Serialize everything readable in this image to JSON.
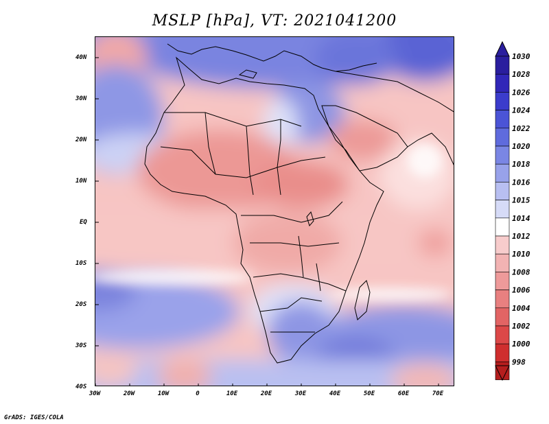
{
  "title": "MSLP [hPa], VT: 2021041200",
  "credit": "GrADS: IGES/COLA",
  "axes": {
    "lon_labels": [
      "30W",
      "20W",
      "10W",
      "0",
      "10E",
      "20E",
      "30E",
      "40E",
      "50E",
      "60E",
      "70E"
    ],
    "lat_labels": [
      "40N",
      "30N",
      "20N",
      "10N",
      "EQ",
      "10S",
      "20S",
      "30S",
      "40S"
    ]
  },
  "colorbar": {
    "levels": [
      "1030",
      "1028",
      "1026",
      "1024",
      "1022",
      "1020",
      "1018",
      "1016",
      "1015",
      "1014",
      "1012",
      "1010",
      "1008",
      "1006",
      "1004",
      "1002",
      "1000",
      "998"
    ],
    "colors": [
      "#2a1e9e",
      "#3127b8",
      "#3b3ccc",
      "#4b54d6",
      "#5f6bdd",
      "#7a86e4",
      "#98a2ea",
      "#b8bff1",
      "#d6dbf7",
      "#ffffff",
      "#f7cccc",
      "#f2b3b3",
      "#ee9a9a",
      "#e88080",
      "#e26464",
      "#dc4848",
      "#cf2e2e",
      "#b51e1e"
    ]
  }
}
